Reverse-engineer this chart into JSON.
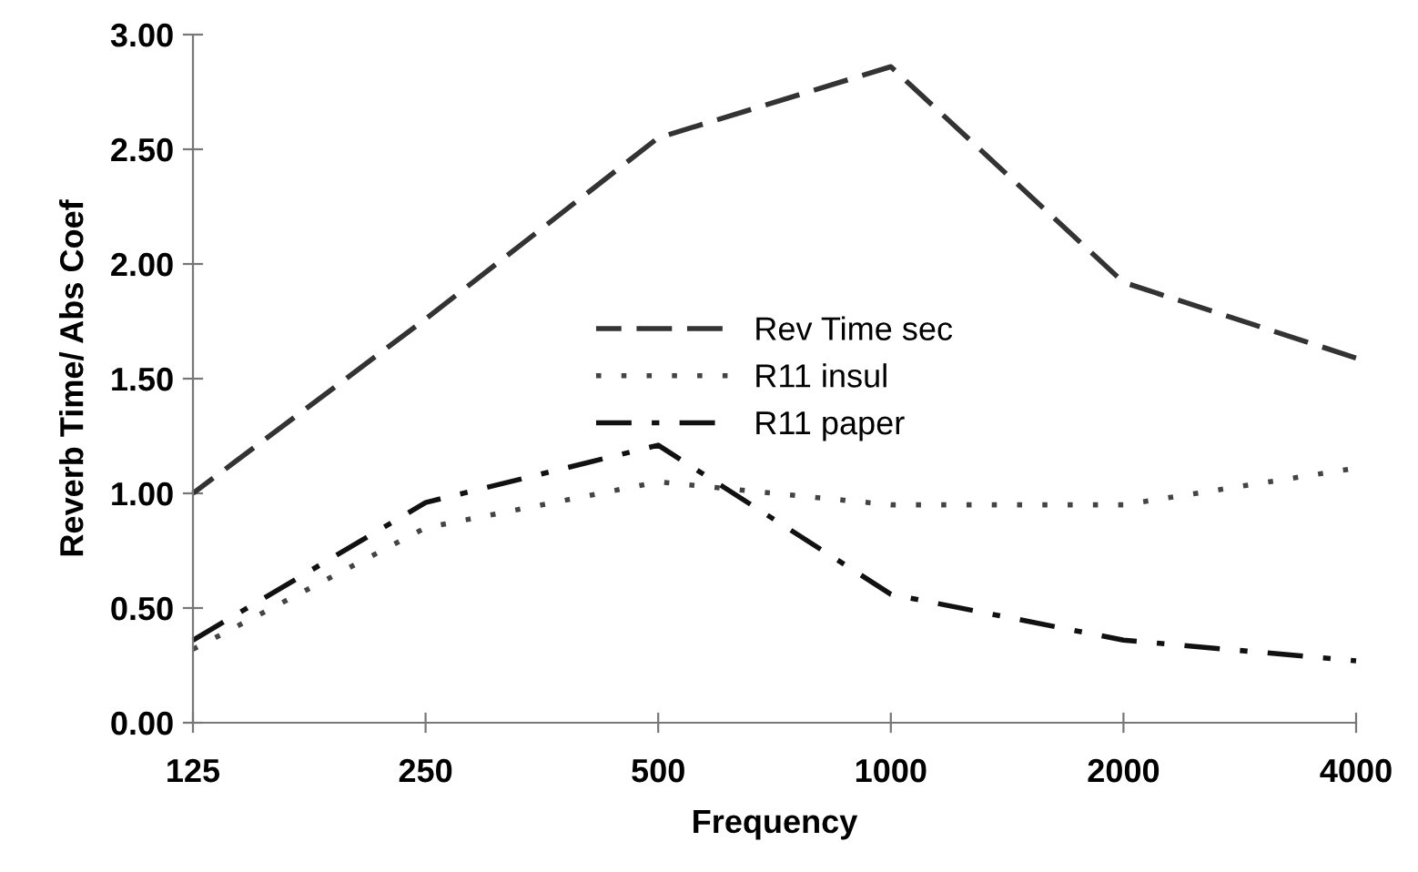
{
  "chart_data": {
    "type": "line",
    "xlabel": "Frequency",
    "ylabel": "Reverb Time/ Abs Coef",
    "categories": [
      "125",
      "250",
      "500",
      "1000",
      "2000",
      "4000"
    ],
    "series": [
      {
        "name": "Rev Time sec",
        "color": "#333333",
        "line_style": "dashed",
        "values": [
          1.0,
          1.76,
          2.55,
          2.86,
          1.92,
          1.59
        ]
      },
      {
        "name": "R11 insul",
        "color": "#444444",
        "line_style": "dotted",
        "values": [
          0.32,
          0.85,
          1.05,
          0.95,
          0.95,
          1.11
        ]
      },
      {
        "name": "R11 paper",
        "color": "#111111",
        "line_style": "dashdot",
        "values": [
          0.36,
          0.96,
          1.21,
          0.56,
          0.36,
          0.27
        ]
      }
    ],
    "ylim": [
      0,
      3
    ],
    "yticks": [
      {
        "value": 0,
        "label": "0.00"
      },
      {
        "value": 0.5,
        "label": "0.50"
      },
      {
        "value": 1,
        "label": "1.00"
      },
      {
        "value": 1.5,
        "label": "1.50"
      },
      {
        "value": 2,
        "label": "2.00"
      },
      {
        "value": 2.5,
        "label": "2.50"
      },
      {
        "value": 3,
        "label": "3.00"
      }
    ],
    "grid": false,
    "legend": "center",
    "marker": "none"
  }
}
